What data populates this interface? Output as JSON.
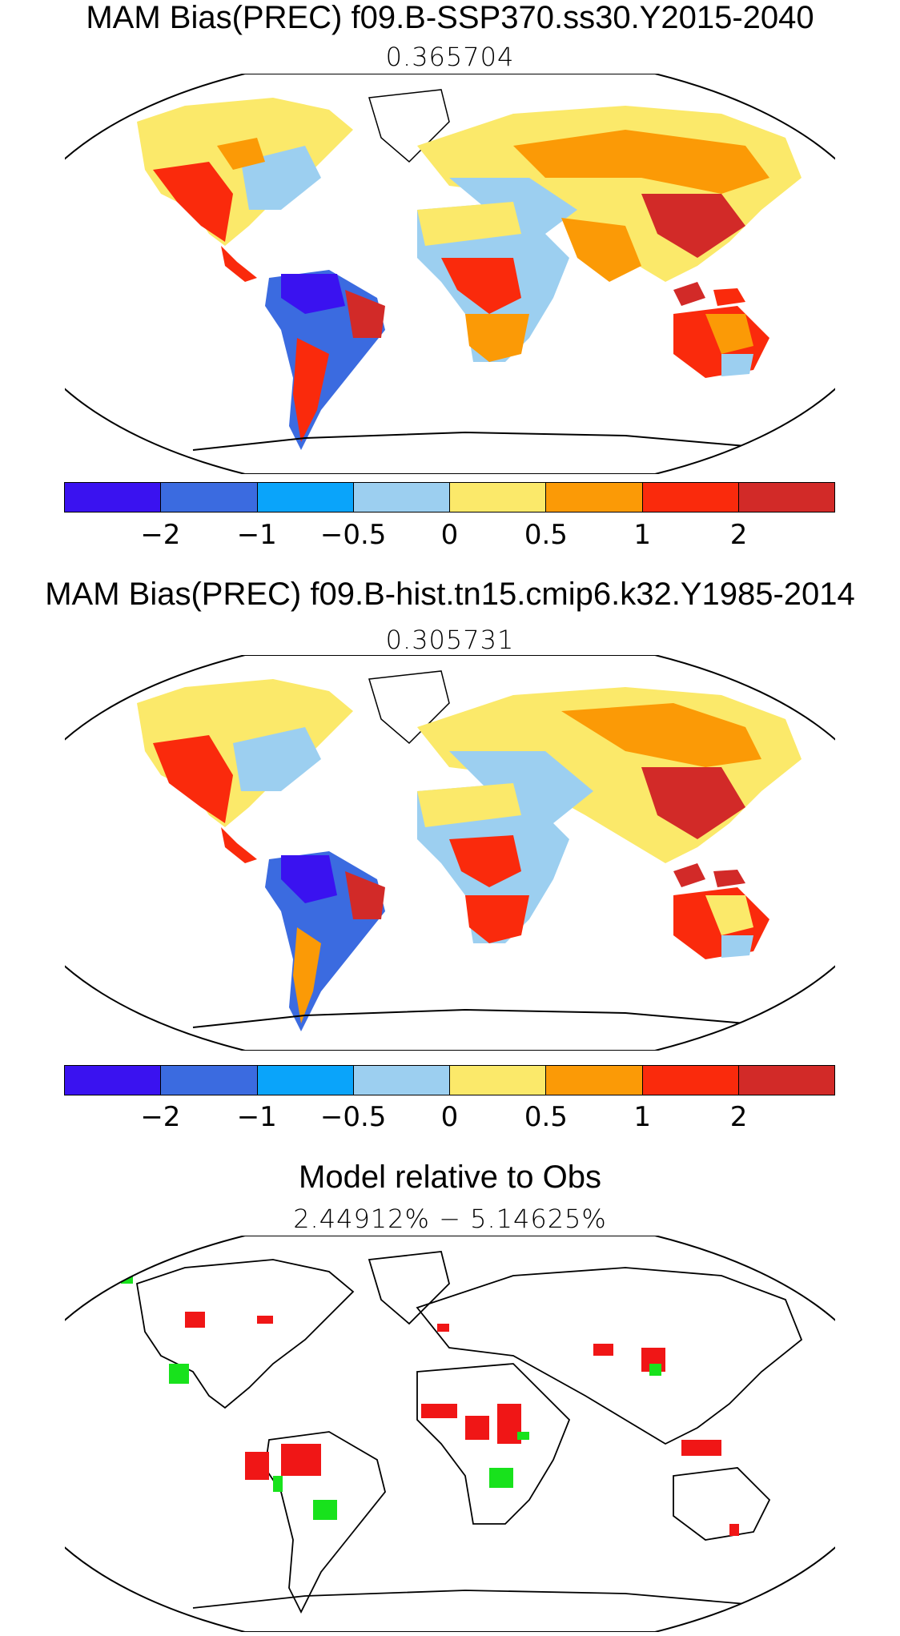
{
  "panels": [
    {
      "title": "MAM Bias(PREC) f09.B-SSP370.ss30.Y2015-2040",
      "value": "0.365704"
    },
    {
      "title": "MAM Bias(PREC) f09.B-hist.tn15.cmip6.k32.Y1985-2014",
      "value": "0.305731"
    },
    {
      "title": "Model relative to Obs",
      "value": "2.44912%  −  5.14625%"
    }
  ],
  "colorbar": {
    "colors": [
      "#3a12f0",
      "#3b6be0",
      "#0aa4fa",
      "#9ccff0",
      "#fbe96a",
      "#fb9a06",
      "#fa2a0c",
      "#d22a28"
    ],
    "tick_labels": [
      "−2",
      "−1",
      "−0.5",
      "0",
      "0.5",
      "1",
      "2"
    ]
  },
  "relative_map_colors": {
    "model_better": "#18e21c",
    "model_worse": "#f01616"
  }
}
